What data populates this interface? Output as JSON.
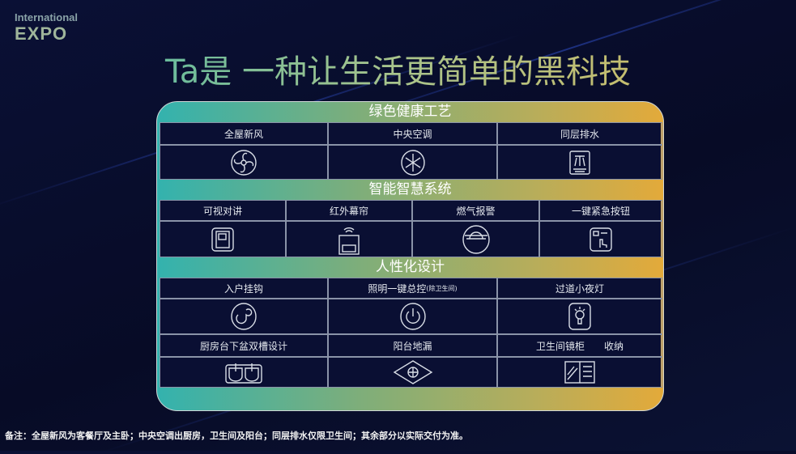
{
  "logo": {
    "line1": "International",
    "line2": "EXPO"
  },
  "title": "Ta是 一种让生活更简单的黑科技",
  "sections": [
    {
      "heading": "绿色健康工艺",
      "items": [
        {
          "label": "全屋新风",
          "icon": "fan-icon"
        },
        {
          "label": "中央空调",
          "icon": "snowflake-icon"
        },
        {
          "label": "同层排水",
          "icon": "drain-icon"
        }
      ]
    },
    {
      "heading": "智能智慧系统",
      "items": [
        {
          "label": "可视对讲",
          "icon": "intercom-icon"
        },
        {
          "label": "红外幕帘",
          "icon": "infrared-icon"
        },
        {
          "label": "燃气报警",
          "icon": "gas-alarm-icon"
        },
        {
          "label": "一键紧急按钮",
          "icon": "emergency-button-icon"
        }
      ]
    },
    {
      "heading": "人性化设计",
      "items": [
        {
          "label": "入户挂钩",
          "icon": "hook-icon"
        },
        {
          "label": "照明一键总控",
          "sub": "(除卫生间)",
          "icon": "power-icon"
        },
        {
          "label": "过道小夜灯",
          "icon": "bulb-icon"
        },
        {
          "label": "厨房台下盆双槽设计",
          "icon": "double-sink-icon"
        },
        {
          "label": "阳台地漏",
          "icon": "floor-drain-icon"
        },
        {
          "label": "卫生间镜柜　　收纳",
          "icon": "mirror-cabinet-icon"
        }
      ]
    }
  ],
  "note": "备注：全屋新风为客餐厅及主卧；中央空调出厨房，卫生间及阳台；同层排水仅限卫生间；其余部分以实际交付为准。",
  "colors": {
    "gradient_start": "#33b2ae",
    "gradient_end": "#e3aa3a",
    "background": "#070b26"
  }
}
